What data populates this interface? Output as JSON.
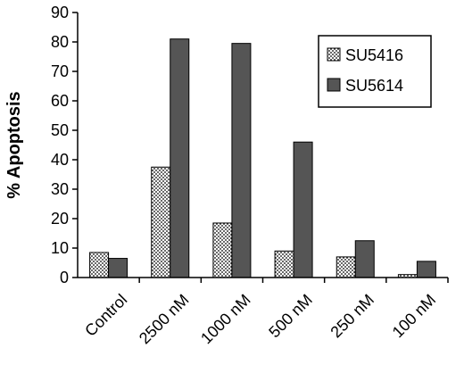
{
  "chart_data": {
    "type": "bar",
    "title": "",
    "xlabel": "",
    "ylabel": "% Apoptosis",
    "ylim": [
      0,
      90
    ],
    "yticks": [
      0,
      10,
      20,
      30,
      40,
      50,
      60,
      70,
      80,
      90
    ],
    "categories": [
      "Control",
      "2500 nM",
      "1000 nM",
      "500 nM",
      "250 nM",
      "100 nM"
    ],
    "series": [
      {
        "name": "SU5416",
        "values": [
          8.5,
          37.5,
          18.5,
          9,
          7,
          1
        ],
        "fill": "dotted",
        "color": "#ffffff"
      },
      {
        "name": "SU5614",
        "values": [
          6.5,
          81,
          79.5,
          46,
          12.5,
          5.5
        ],
        "fill": "solid",
        "color": "#555555"
      }
    ],
    "grid": false,
    "legend_position": "top-right"
  }
}
